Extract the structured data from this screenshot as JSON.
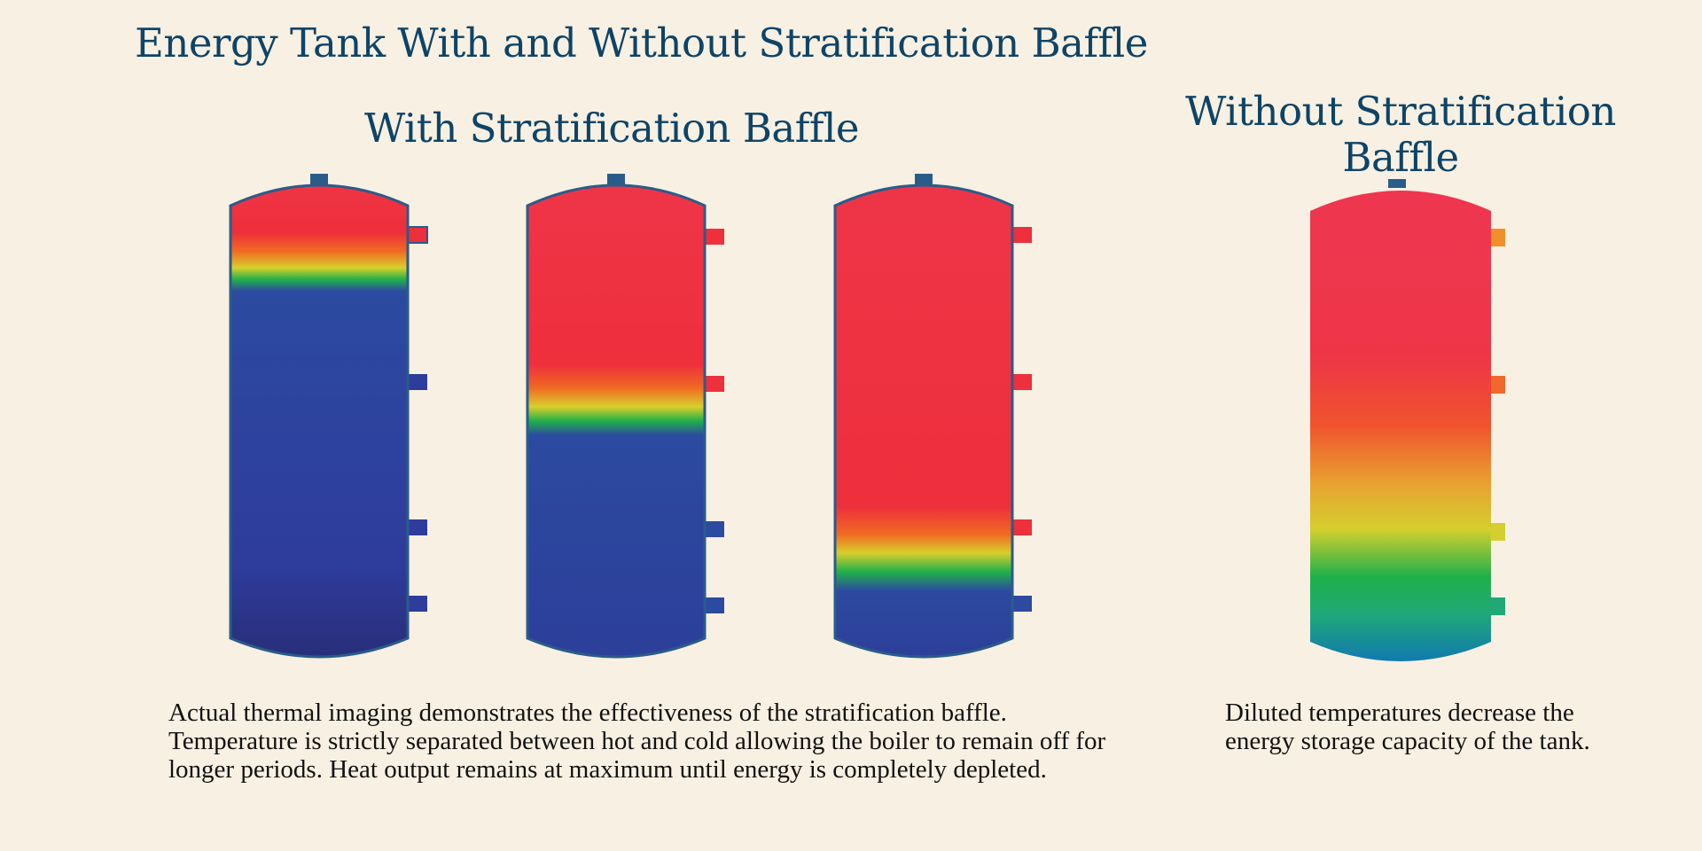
{
  "title": "Energy Tank With and Without Stratification Baffle",
  "with_heading": "With Stratification Baffle",
  "without_heading": "Without Stratification Baffle",
  "caption_with": "Actual thermal imaging demonstrates the effectiveness of the stratification baffle. Temperature is strictly separated between hot and cold allowing the boiler to remain off for longer periods. Heat output remains at maximum until energy is completely depleted.",
  "caption_without": "Diluted temperatures decrease the energy storage capacity of the tank.",
  "colors": {
    "heading": "#0d4468",
    "hot": "#ee2f48",
    "warm": "#f06a22",
    "yellow": "#d9d431",
    "green": "#20b04a",
    "teal": "#118aaa",
    "cold": "#2c42a0",
    "cold_dark": "#27317e"
  },
  "tanks": [
    {
      "name": "tank-with-1",
      "hot_fraction": 0.24
    },
    {
      "name": "tank-with-2",
      "hot_fraction": 0.55
    },
    {
      "name": "tank-with-3",
      "hot_fraction": 0.84
    },
    {
      "name": "tank-without",
      "hot_fraction": 1.0
    }
  ]
}
